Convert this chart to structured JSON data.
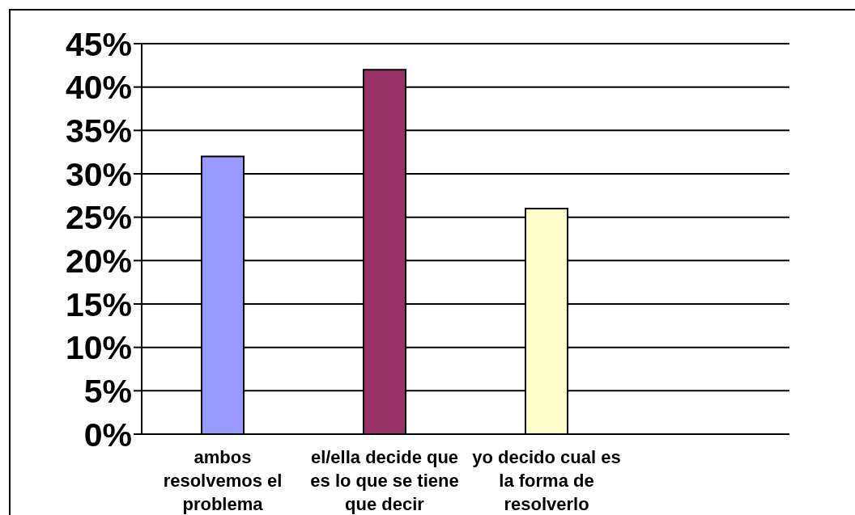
{
  "chart_data": {
    "type": "bar",
    "categories": [
      "ambos resolvemos el problema",
      "el/ella decide que es lo que se tiene que decir",
      "yo decido cual es la forma de resolverlo",
      null
    ],
    "values": [
      32,
      42,
      26,
      null
    ],
    "colors": [
      "#9999ff",
      "#993366",
      "#ffffcc",
      null
    ],
    "ylim": [
      0,
      45
    ],
    "yticks": [
      {
        "value": 0,
        "label": "0%"
      },
      {
        "value": 5,
        "label": "5%"
      },
      {
        "value": 10,
        "label": "10%"
      },
      {
        "value": 15,
        "label": "15%"
      },
      {
        "value": 20,
        "label": "20%"
      },
      {
        "value": 25,
        "label": "25%"
      },
      {
        "value": 30,
        "label": "30%"
      },
      {
        "value": 35,
        "label": "35%"
      },
      {
        "value": 40,
        "label": "40%"
      },
      {
        "value": 45,
        "label": "45%"
      }
    ],
    "grid": "y"
  }
}
